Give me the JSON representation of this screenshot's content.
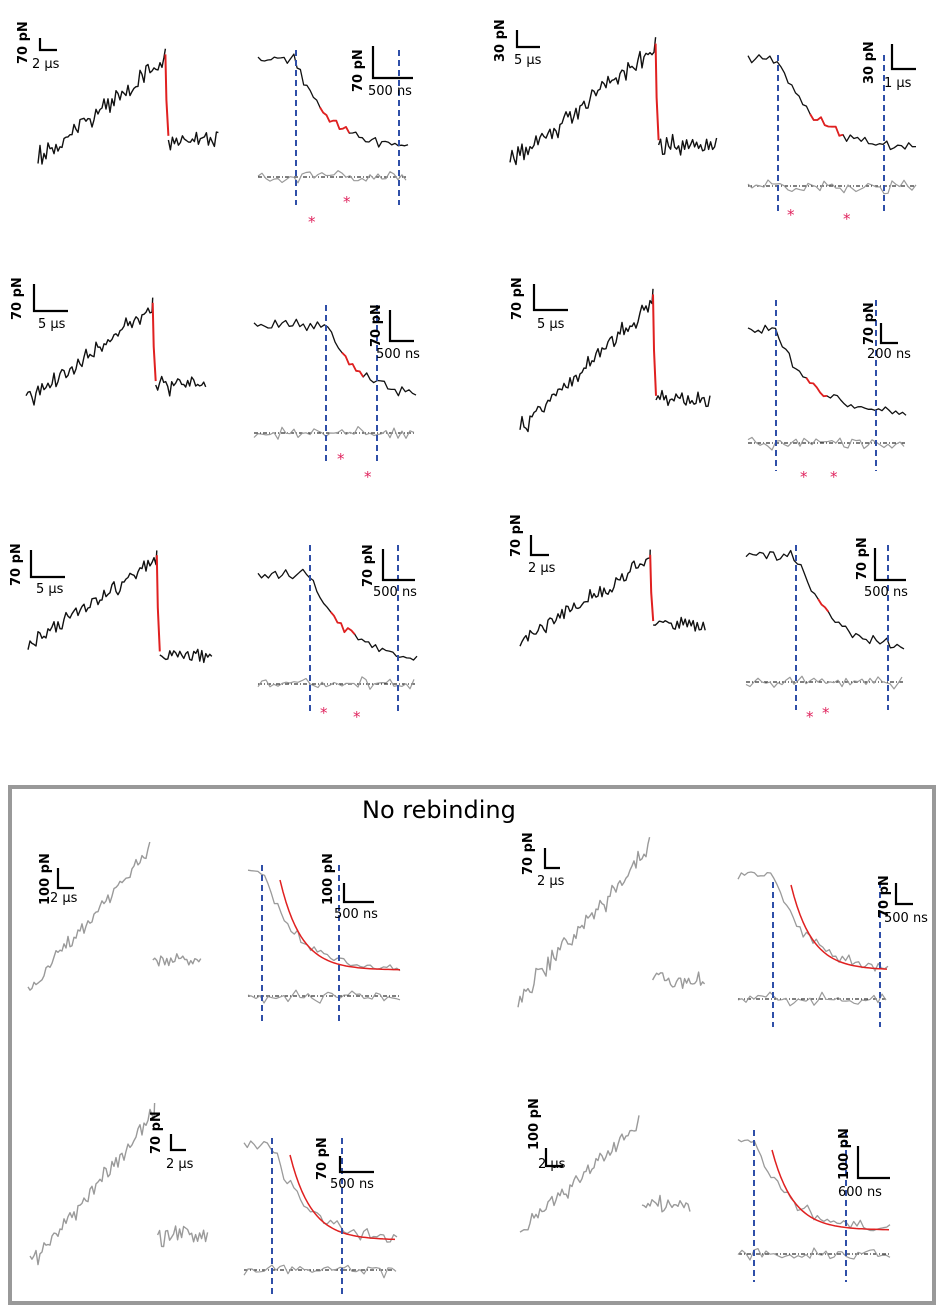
{
  "no_rebinding_title": "No rebinding",
  "colors": {
    "trace_black": "#111111",
    "trace_gray": "#9a9a9a",
    "highlight_red": "#e02020",
    "fit_red": "#e02020",
    "marker_blue": "#2f4fa8",
    "star_pink": "#e0245e",
    "frame_gray": "#999999"
  },
  "rebinding": [
    {
      "long_force": "70 pN",
      "long_time": "2 µs",
      "zoom_force": "70 pN",
      "zoom_time": "500 ns",
      "star": "*"
    },
    {
      "long_force": "30 pN",
      "long_time": "5 µs",
      "zoom_force": "30 pN",
      "zoom_time": "1 µs",
      "star": "*"
    },
    {
      "long_force": "70 pN",
      "long_time": "5 µs",
      "zoom_force": "70 pN",
      "zoom_time": "500 ns",
      "star": "*"
    },
    {
      "long_force": "70 pN",
      "long_time": "5 µs",
      "zoom_force": "70 pN",
      "zoom_time": "200 ns",
      "star": "*"
    },
    {
      "long_force": "70 pN",
      "long_time": "5 µs",
      "zoom_force": "70 pN",
      "zoom_time": "500 ns",
      "star": "*"
    },
    {
      "long_force": "70 pN",
      "long_time": "2 µs",
      "zoom_force": "70 pN",
      "zoom_time": "500 ns",
      "star": "*"
    }
  ],
  "no_rebinding": [
    {
      "long_force": "100 pN",
      "long_time": "2 µs",
      "zoom_force": "100 pN",
      "zoom_time": "500 ns"
    },
    {
      "long_force": "70 pN",
      "long_time": "2 µs",
      "zoom_force": "70 pN",
      "zoom_time": "500 ns"
    },
    {
      "long_force": "70 pN",
      "long_time": "2 µs",
      "zoom_force": "70 pN",
      "zoom_time": "500 ns"
    },
    {
      "long_force": "100 pN",
      "long_time": "2 µs",
      "zoom_force": "100 pN",
      "zoom_time": "600 ns"
    }
  ]
}
